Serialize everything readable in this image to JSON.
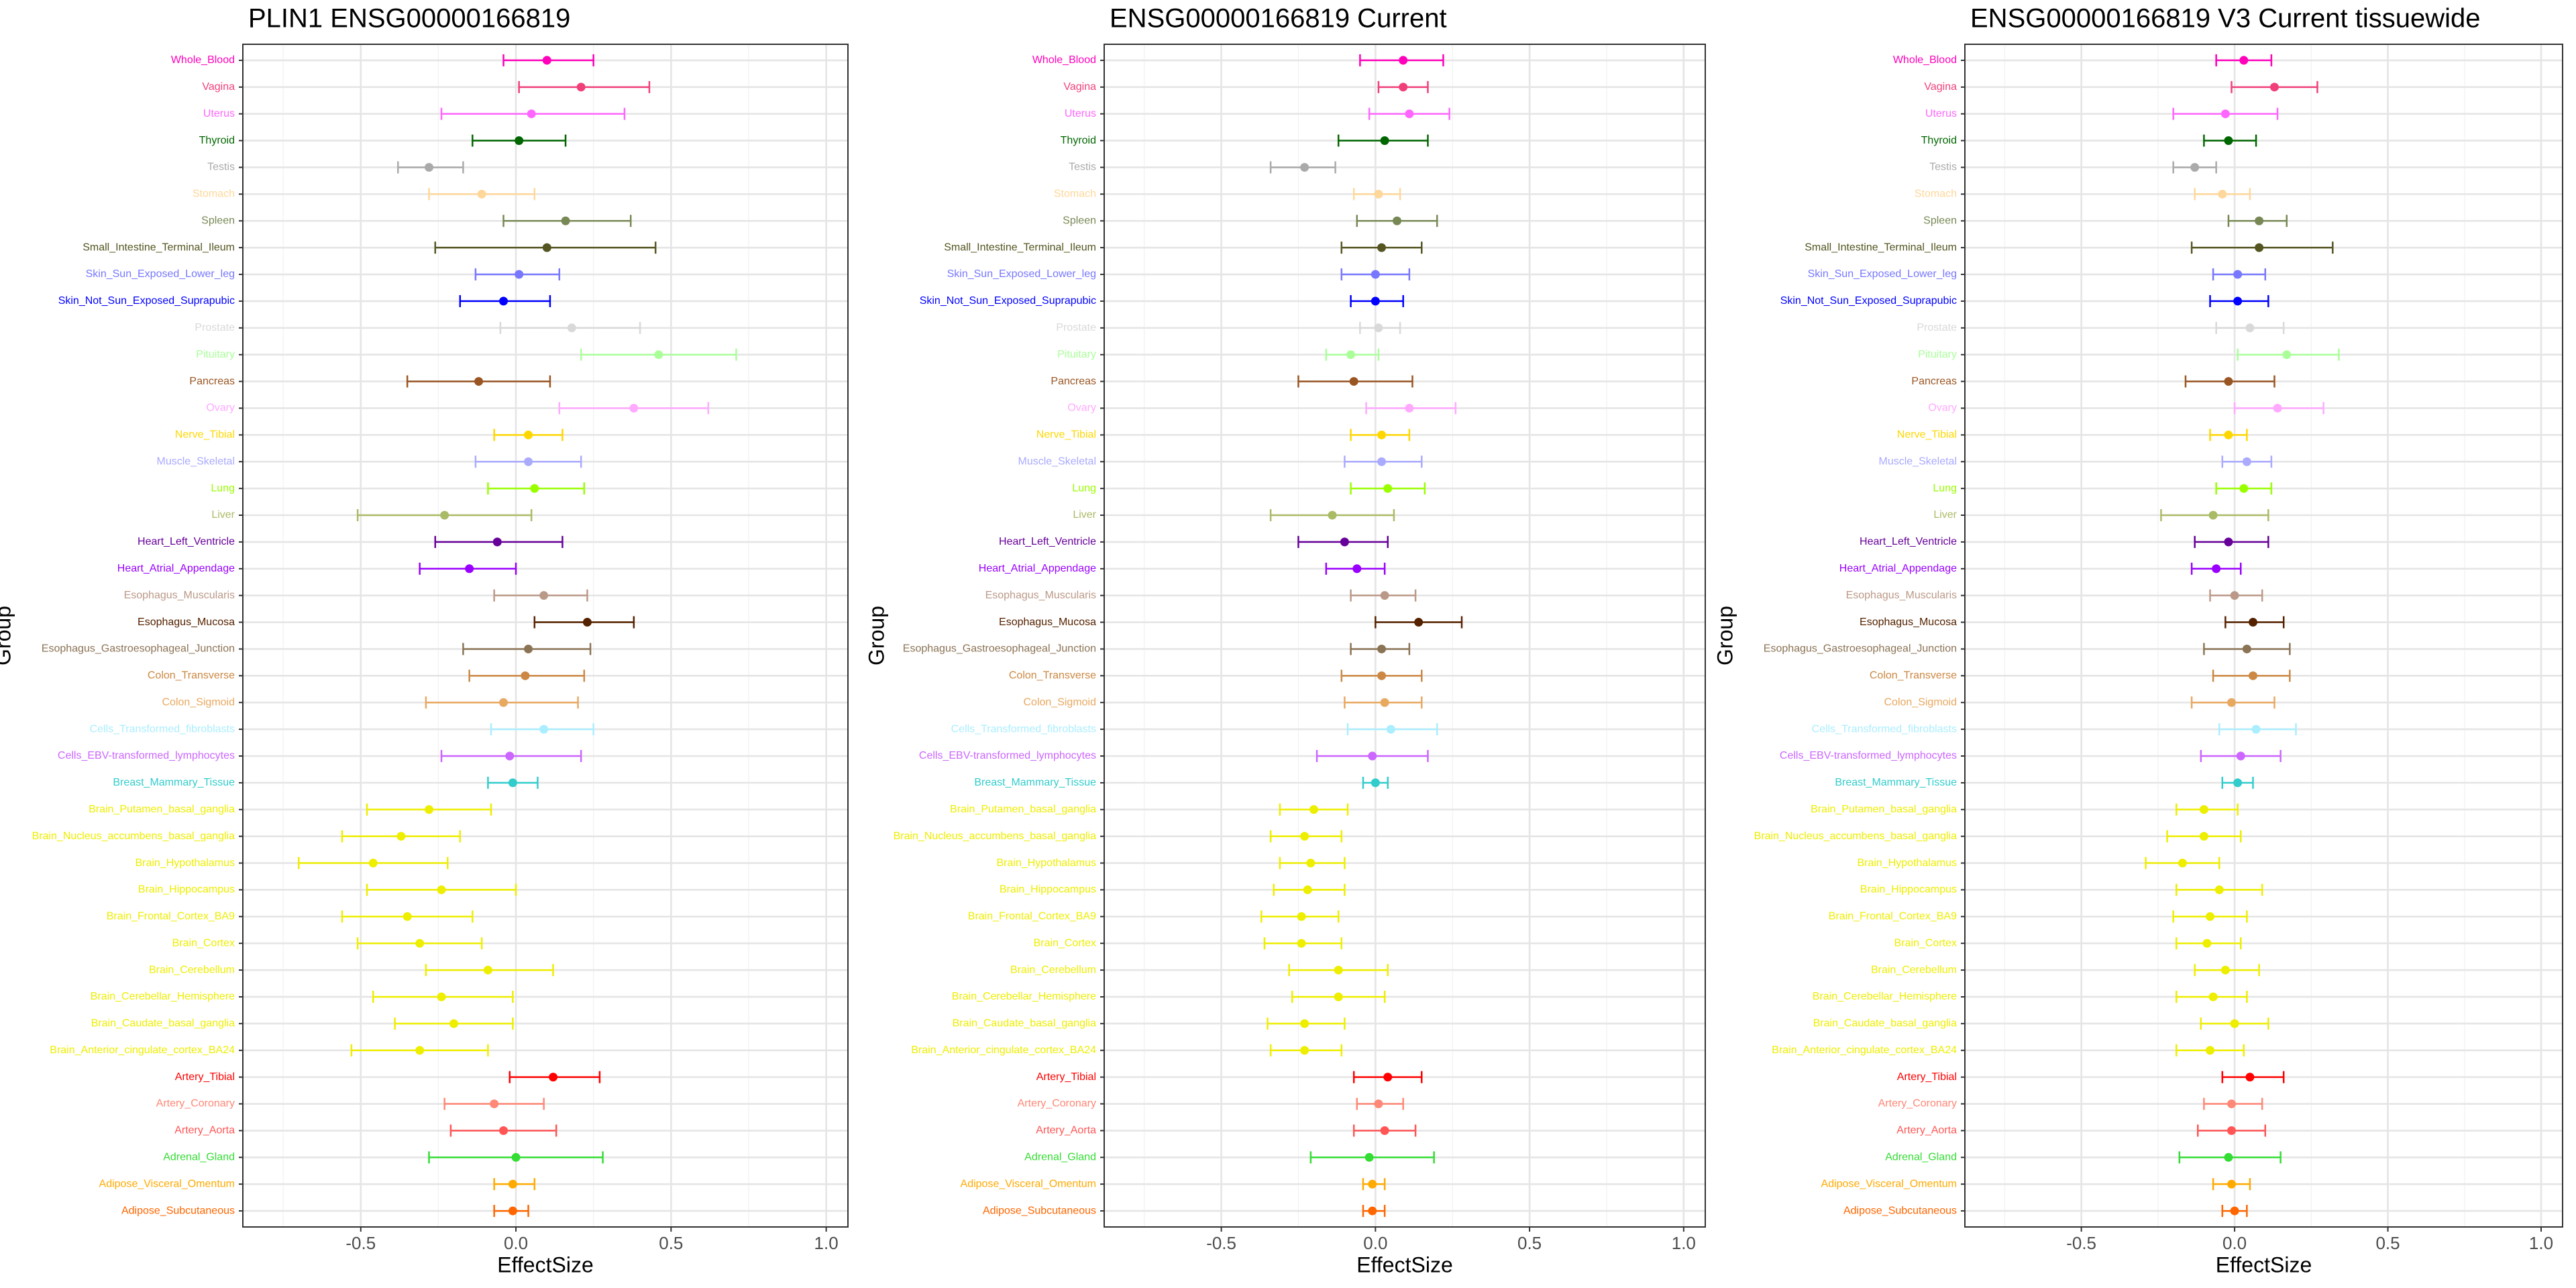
{
  "chart_data": [
    {
      "type": "forest",
      "title": "PLIN1 ENSG00000166819",
      "xlabel": "EffectSize",
      "ylabel": "Group",
      "categories": [
        "Whole_Blood",
        "Vagina",
        "Uterus",
        "Thyroid",
        "Testis",
        "Stomach",
        "Spleen",
        "Small_Intestine_Terminal_Ileum",
        "Skin_Sun_Exposed_Lower_leg",
        "Skin_Not_Sun_Exposed_Suprapubic",
        "Prostate",
        "Pituitary",
        "Pancreas",
        "Ovary",
        "Nerve_Tibial",
        "Muscle_Skeletal",
        "Lung",
        "Liver",
        "Heart_Left_Ventricle",
        "Heart_Atrial_Appendage",
        "Esophagus_Muscularis",
        "Esophagus_Mucosa",
        "Esophagus_Gastroesophageal_Junction",
        "Colon_Transverse",
        "Colon_Sigmoid",
        "Cells_Transformed_fibroblasts",
        "Cells_EBV-transformed_lymphocytes",
        "Breast_Mammary_Tissue",
        "Brain_Putamen_basal_ganglia",
        "Brain_Nucleus_accumbens_basal_ganglia",
        "Brain_Hypothalamus",
        "Brain_Hippocampus",
        "Brain_Frontal_Cortex_BA9",
        "Brain_Cortex",
        "Brain_Cerebellum",
        "Brain_Cerebellar_Hemisphere",
        "Brain_Caudate_basal_ganglia",
        "Brain_Anterior_cingulate_cortex_BA24",
        "Artery_Tibial",
        "Artery_Coronary",
        "Artery_Aorta",
        "Adrenal_Gland",
        "Adipose_Visceral_Omentum",
        "Adipose_Subcutaneous"
      ],
      "colors": [
        "#FF00BB",
        "#F0407A",
        "#FF66FF",
        "#006600",
        "#AAAAAA",
        "#FFD79A",
        "#778855",
        "#555522",
        "#7777FF",
        "#0000FF",
        "#D9D9D9",
        "#AAFF99",
        "#995522",
        "#FFAAFF",
        "#FFD700",
        "#AAAAFF",
        "#99FF00",
        "#AABB66",
        "#660099",
        "#9900FF",
        "#BB9988",
        "#552200",
        "#8B7355",
        "#CC8844",
        "#E8A860",
        "#AAEEFF",
        "#CC66FF",
        "#33CCCC",
        "#EEEE00",
        "#EEEE00",
        "#EEEE00",
        "#EEEE00",
        "#EEEE00",
        "#EEEE00",
        "#EEEE00",
        "#EEEE00",
        "#EEEE00",
        "#EEEE00",
        "#FF0000",
        "#FF8877",
        "#FF5555",
        "#33DD33",
        "#FFAA00",
        "#FF6600"
      ],
      "values": [
        0.1,
        0.21,
        0.05,
        0.01,
        -0.28,
        -0.11,
        0.16,
        0.1,
        0.01,
        -0.04,
        0.18,
        0.46,
        -0.12,
        0.38,
        0.04,
        0.04,
        0.06,
        -0.23,
        -0.06,
        -0.15,
        0.09,
        0.23,
        0.04,
        0.03,
        -0.04,
        0.09,
        -0.02,
        -0.01,
        -0.28,
        -0.37,
        -0.46,
        -0.24,
        -0.35,
        -0.31,
        -0.09,
        -0.24,
        -0.2,
        -0.31,
        0.12,
        -0.07,
        -0.04,
        0.0,
        -0.01,
        -0.01
      ],
      "lower": [
        -0.04,
        0.01,
        -0.24,
        -0.14,
        -0.38,
        -0.28,
        -0.04,
        -0.26,
        -0.13,
        -0.18,
        -0.05,
        0.21,
        -0.35,
        0.14,
        -0.07,
        -0.13,
        -0.09,
        -0.51,
        -0.26,
        -0.31,
        -0.07,
        0.06,
        -0.17,
        -0.15,
        -0.29,
        -0.08,
        -0.24,
        -0.09,
        -0.48,
        -0.56,
        -0.7,
        -0.48,
        -0.56,
        -0.51,
        -0.29,
        -0.46,
        -0.39,
        -0.53,
        -0.02,
        -0.23,
        -0.21,
        -0.28,
        -0.07,
        -0.07
      ],
      "upper": [
        0.25,
        0.43,
        0.35,
        0.16,
        -0.17,
        0.06,
        0.37,
        0.45,
        0.14,
        0.11,
        0.4,
        0.71,
        0.11,
        0.62,
        0.15,
        0.21,
        0.22,
        0.05,
        0.15,
        0.0,
        0.23,
        0.38,
        0.24,
        0.22,
        0.2,
        0.25,
        0.21,
        0.07,
        -0.08,
        -0.18,
        -0.22,
        0.0,
        -0.14,
        -0.11,
        0.12,
        -0.01,
        -0.01,
        -0.09,
        0.27,
        0.09,
        0.13,
        0.28,
        0.06,
        0.04
      ],
      "xlim": [
        -0.88,
        1.07
      ],
      "xticks": [
        -0.5,
        {
          "value": 0,
          "label": "0.0"
        },
        0.5,
        {
          "value": 1,
          "label": "1.0"
        }
      ],
      "xminor": [
        -0.75,
        -0.25,
        0.25,
        0.75
      ],
      "grid": true
    },
    {
      "type": "forest",
      "title": "ENSG00000166819 Current",
      "xlabel": "EffectSize",
      "ylabel": "Group",
      "categories": [
        "Whole_Blood",
        "Vagina",
        "Uterus",
        "Thyroid",
        "Testis",
        "Stomach",
        "Spleen",
        "Small_Intestine_Terminal_Ileum",
        "Skin_Sun_Exposed_Lower_leg",
        "Skin_Not_Sun_Exposed_Suprapubic",
        "Prostate",
        "Pituitary",
        "Pancreas",
        "Ovary",
        "Nerve_Tibial",
        "Muscle_Skeletal",
        "Lung",
        "Liver",
        "Heart_Left_Ventricle",
        "Heart_Atrial_Appendage",
        "Esophagus_Muscularis",
        "Esophagus_Mucosa",
        "Esophagus_Gastroesophageal_Junction",
        "Colon_Transverse",
        "Colon_Sigmoid",
        "Cells_Transformed_fibroblasts",
        "Cells_EBV-transformed_lymphocytes",
        "Breast_Mammary_Tissue",
        "Brain_Putamen_basal_ganglia",
        "Brain_Nucleus_accumbens_basal_ganglia",
        "Brain_Hypothalamus",
        "Brain_Hippocampus",
        "Brain_Frontal_Cortex_BA9",
        "Brain_Cortex",
        "Brain_Cerebellum",
        "Brain_Cerebellar_Hemisphere",
        "Brain_Caudate_basal_ganglia",
        "Brain_Anterior_cingulate_cortex_BA24",
        "Artery_Tibial",
        "Artery_Coronary",
        "Artery_Aorta",
        "Adrenal_Gland",
        "Adipose_Visceral_Omentum",
        "Adipose_Subcutaneous"
      ],
      "colors": [
        "#FF00BB",
        "#F0407A",
        "#FF66FF",
        "#006600",
        "#AAAAAA",
        "#FFD79A",
        "#778855",
        "#555522",
        "#7777FF",
        "#0000FF",
        "#D9D9D9",
        "#AAFF99",
        "#995522",
        "#FFAAFF",
        "#FFD700",
        "#AAAAFF",
        "#99FF00",
        "#AABB66",
        "#660099",
        "#9900FF",
        "#BB9988",
        "#552200",
        "#8B7355",
        "#CC8844",
        "#E8A860",
        "#AAEEFF",
        "#CC66FF",
        "#33CCCC",
        "#EEEE00",
        "#EEEE00",
        "#EEEE00",
        "#EEEE00",
        "#EEEE00",
        "#EEEE00",
        "#EEEE00",
        "#EEEE00",
        "#EEEE00",
        "#EEEE00",
        "#FF0000",
        "#FF8877",
        "#FF5555",
        "#33DD33",
        "#FFAA00",
        "#FF6600"
      ],
      "values": [
        0.09,
        0.09,
        0.11,
        0.03,
        -0.23,
        0.01,
        0.07,
        0.02,
        0.0,
        0.0,
        0.01,
        -0.08,
        -0.07,
        0.11,
        0.02,
        0.02,
        0.04,
        -0.14,
        -0.1,
        -0.06,
        0.03,
        0.14,
        0.02,
        0.02,
        0.03,
        0.05,
        -0.01,
        0.0,
        -0.2,
        -0.23,
        -0.21,
        -0.22,
        -0.24,
        -0.24,
        -0.12,
        -0.12,
        -0.23,
        -0.23,
        0.04,
        0.01,
        0.03,
        -0.02,
        -0.01,
        -0.01
      ],
      "lower": [
        -0.05,
        0.01,
        -0.02,
        -0.12,
        -0.34,
        -0.07,
        -0.06,
        -0.11,
        -0.11,
        -0.08,
        -0.05,
        -0.16,
        -0.25,
        -0.03,
        -0.08,
        -0.1,
        -0.08,
        -0.34,
        -0.25,
        -0.16,
        -0.08,
        0.0,
        -0.08,
        -0.11,
        -0.1,
        -0.09,
        -0.19,
        -0.04,
        -0.31,
        -0.34,
        -0.31,
        -0.33,
        -0.37,
        -0.36,
        -0.28,
        -0.27,
        -0.35,
        -0.34,
        -0.07,
        -0.06,
        -0.07,
        -0.21,
        -0.04,
        -0.04
      ],
      "upper": [
        0.22,
        0.17,
        0.24,
        0.17,
        -0.13,
        0.08,
        0.2,
        0.15,
        0.11,
        0.09,
        0.08,
        0.01,
        0.12,
        0.26,
        0.11,
        0.15,
        0.16,
        0.06,
        0.04,
        0.03,
        0.13,
        0.28,
        0.11,
        0.15,
        0.15,
        0.2,
        0.17,
        0.04,
        -0.09,
        -0.11,
        -0.1,
        -0.1,
        -0.12,
        -0.11,
        0.04,
        0.03,
        -0.1,
        -0.11,
        0.15,
        0.09,
        0.13,
        0.19,
        0.03,
        0.03
      ],
      "xlim": [
        -0.88,
        1.07
      ],
      "xticks": [
        -0.5,
        {
          "value": 0,
          "label": "0.0"
        },
        0.5,
        {
          "value": 1,
          "label": "1.0"
        }
      ],
      "xminor": [
        -0.75,
        -0.25,
        0.25,
        0.75
      ],
      "grid": true
    },
    {
      "type": "forest",
      "title": "ENSG00000166819 V3 Current tissuewide",
      "xlabel": "EffectSize",
      "ylabel": "Group",
      "categories": [
        "Whole_Blood",
        "Vagina",
        "Uterus",
        "Thyroid",
        "Testis",
        "Stomach",
        "Spleen",
        "Small_Intestine_Terminal_Ileum",
        "Skin_Sun_Exposed_Lower_leg",
        "Skin_Not_Sun_Exposed_Suprapubic",
        "Prostate",
        "Pituitary",
        "Pancreas",
        "Ovary",
        "Nerve_Tibial",
        "Muscle_Skeletal",
        "Lung",
        "Liver",
        "Heart_Left_Ventricle",
        "Heart_Atrial_Appendage",
        "Esophagus_Muscularis",
        "Esophagus_Mucosa",
        "Esophagus_Gastroesophageal_Junction",
        "Colon_Transverse",
        "Colon_Sigmoid",
        "Cells_Transformed_fibroblasts",
        "Cells_EBV-transformed_lymphocytes",
        "Breast_Mammary_Tissue",
        "Brain_Putamen_basal_ganglia",
        "Brain_Nucleus_accumbens_basal_ganglia",
        "Brain_Hypothalamus",
        "Brain_Hippocampus",
        "Brain_Frontal_Cortex_BA9",
        "Brain_Cortex",
        "Brain_Cerebellum",
        "Brain_Cerebellar_Hemisphere",
        "Brain_Caudate_basal_ganglia",
        "Brain_Anterior_cingulate_cortex_BA24",
        "Artery_Tibial",
        "Artery_Coronary",
        "Artery_Aorta",
        "Adrenal_Gland",
        "Adipose_Visceral_Omentum",
        "Adipose_Subcutaneous"
      ],
      "colors": [
        "#FF00BB",
        "#F0407A",
        "#FF66FF",
        "#006600",
        "#AAAAAA",
        "#FFD79A",
        "#778855",
        "#555522",
        "#7777FF",
        "#0000FF",
        "#D9D9D9",
        "#AAFF99",
        "#995522",
        "#FFAAFF",
        "#FFD700",
        "#AAAAFF",
        "#99FF00",
        "#AABB66",
        "#660099",
        "#9900FF",
        "#BB9988",
        "#552200",
        "#8B7355",
        "#CC8844",
        "#E8A860",
        "#AAEEFF",
        "#CC66FF",
        "#33CCCC",
        "#EEEE00",
        "#EEEE00",
        "#EEEE00",
        "#EEEE00",
        "#EEEE00",
        "#EEEE00",
        "#EEEE00",
        "#EEEE00",
        "#EEEE00",
        "#EEEE00",
        "#FF0000",
        "#FF8877",
        "#FF5555",
        "#33DD33",
        "#FFAA00",
        "#FF6600"
      ],
      "values": [
        0.03,
        0.13,
        -0.03,
        -0.02,
        -0.13,
        -0.04,
        0.08,
        0.08,
        0.01,
        0.01,
        0.05,
        0.17,
        -0.02,
        0.14,
        -0.02,
        0.04,
        0.03,
        -0.07,
        -0.02,
        -0.06,
        0.0,
        0.06,
        0.04,
        0.06,
        -0.01,
        0.07,
        0.02,
        0.01,
        -0.1,
        -0.1,
        -0.17,
        -0.05,
        -0.08,
        -0.09,
        -0.03,
        -0.07,
        0.0,
        -0.08,
        0.05,
        -0.01,
        -0.01,
        -0.02,
        -0.01,
        0.0
      ],
      "lower": [
        -0.06,
        -0.01,
        -0.2,
        -0.1,
        -0.2,
        -0.13,
        -0.02,
        -0.14,
        -0.07,
        -0.08,
        -0.06,
        0.01,
        -0.16,
        0.0,
        -0.08,
        -0.04,
        -0.06,
        -0.24,
        -0.13,
        -0.14,
        -0.08,
        -0.03,
        -0.1,
        -0.07,
        -0.14,
        -0.05,
        -0.11,
        -0.04,
        -0.19,
        -0.22,
        -0.29,
        -0.19,
        -0.2,
        -0.19,
        -0.13,
        -0.19,
        -0.11,
        -0.19,
        -0.04,
        -0.1,
        -0.12,
        -0.18,
        -0.07,
        -0.04
      ],
      "upper": [
        0.12,
        0.27,
        0.14,
        0.07,
        -0.06,
        0.05,
        0.17,
        0.32,
        0.1,
        0.11,
        0.16,
        0.34,
        0.13,
        0.29,
        0.04,
        0.12,
        0.12,
        0.11,
        0.11,
        0.02,
        0.09,
        0.16,
        0.18,
        0.18,
        0.13,
        0.2,
        0.15,
        0.06,
        0.01,
        0.02,
        -0.05,
        0.09,
        0.04,
        0.02,
        0.08,
        0.04,
        0.11,
        0.03,
        0.16,
        0.09,
        0.1,
        0.15,
        0.05,
        0.04
      ],
      "xlim": [
        -0.88,
        1.07
      ],
      "xticks": [
        -0.5,
        {
          "value": 0,
          "label": "0.0"
        },
        0.5,
        {
          "value": 1,
          "label": "1.0"
        }
      ],
      "xminor": [
        -0.75,
        -0.25,
        0.25,
        0.75
      ],
      "grid": true
    }
  ]
}
